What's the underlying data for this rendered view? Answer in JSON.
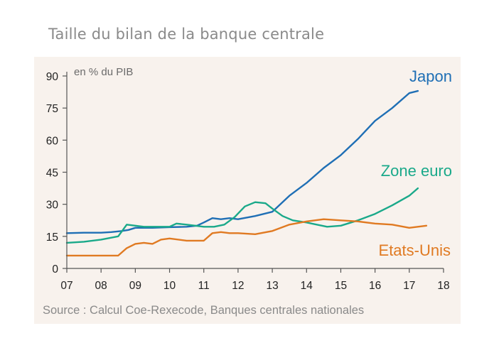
{
  "title": "Taille du bilan de la banque centrale",
  "source": "Source : Calcul Coe-Rexecode, Banques centrales nationales",
  "chart_data": {
    "type": "line",
    "unit_label": "en % du PIB",
    "xlim": [
      7,
      18
    ],
    "ylim": [
      0,
      90
    ],
    "x_ticks": [
      7,
      8,
      9,
      10,
      11,
      12,
      13,
      14,
      15,
      16,
      17,
      18
    ],
    "x_tick_labels": [
      "07",
      "08",
      "09",
      "10",
      "11",
      "12",
      "13",
      "14",
      "15",
      "16",
      "17",
      "18"
    ],
    "y_ticks": [
      0,
      15,
      30,
      45,
      60,
      75,
      90
    ],
    "y_tick_labels": [
      "0",
      "15",
      "30",
      "45",
      "60",
      "75",
      "90"
    ],
    "grid": false,
    "legend": "inline labels",
    "series": [
      {
        "name": "Japon",
        "color": "#1f6fb5",
        "x": [
          7.0,
          7.5,
          8.0,
          8.3,
          8.6,
          8.8,
          9.0,
          9.5,
          10.0,
          10.5,
          10.8,
          11.0,
          11.25,
          11.5,
          11.75,
          12.0,
          12.5,
          13.0,
          13.5,
          14.0,
          14.5,
          15.0,
          15.5,
          16.0,
          16.5,
          17.0,
          17.25
        ],
        "y": [
          16.5,
          16.7,
          16.7,
          17.0,
          17.5,
          18.0,
          19.0,
          19.0,
          19.3,
          19.5,
          20.0,
          21.5,
          23.5,
          23.0,
          23.5,
          23.0,
          24.5,
          26.5,
          34.0,
          40.0,
          47.0,
          53.0,
          60.5,
          69.0,
          75.0,
          82.0,
          83.0
        ]
      },
      {
        "name": "Zone euro",
        "color": "#1aa98a",
        "x": [
          7.0,
          7.5,
          8.0,
          8.5,
          8.75,
          9.0,
          9.25,
          9.5,
          10.0,
          10.2,
          10.5,
          11.0,
          11.3,
          11.6,
          11.9,
          12.2,
          12.5,
          12.8,
          13.0,
          13.3,
          13.6,
          14.0,
          14.3,
          14.6,
          15.0,
          15.5,
          16.0,
          16.5,
          17.0,
          17.25
        ],
        "y": [
          12.0,
          12.5,
          13.5,
          15.0,
          20.5,
          20.0,
          19.5,
          19.5,
          19.5,
          21.0,
          20.5,
          19.5,
          19.5,
          20.5,
          24.0,
          29.0,
          31.0,
          30.5,
          28.0,
          24.5,
          22.5,
          21.5,
          20.5,
          19.5,
          20.0,
          22.5,
          25.5,
          29.5,
          34.0,
          37.5
        ]
      },
      {
        "name": "Etats-Unis",
        "color": "#e07a22",
        "x": [
          7.0,
          7.5,
          8.0,
          8.5,
          8.75,
          9.0,
          9.25,
          9.5,
          9.75,
          10.0,
          10.5,
          11.0,
          11.25,
          11.5,
          11.75,
          12.0,
          12.5,
          13.0,
          13.5,
          14.0,
          14.5,
          15.0,
          15.5,
          16.0,
          16.5,
          17.0,
          17.5
        ],
        "y": [
          6.0,
          6.0,
          6.0,
          6.0,
          9.5,
          11.5,
          12.0,
          11.5,
          13.5,
          14.0,
          13.0,
          13.0,
          16.5,
          17.0,
          16.5,
          16.5,
          16.0,
          17.5,
          20.5,
          22.0,
          23.0,
          22.5,
          22.0,
          21.0,
          20.5,
          19.0,
          20.0
        ]
      }
    ]
  }
}
